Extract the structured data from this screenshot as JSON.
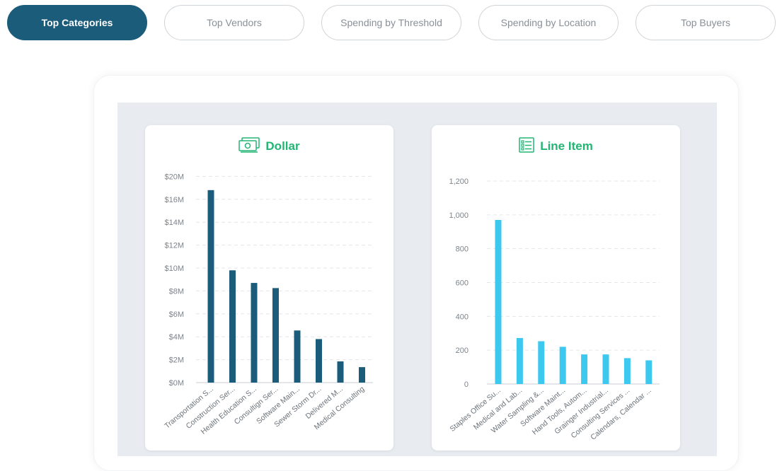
{
  "tabs": [
    {
      "label": "Top Categories",
      "active": true
    },
    {
      "label": "Top Vendors",
      "active": false
    },
    {
      "label": "Spending by Threshold",
      "active": false
    },
    {
      "label": "Spending by Location",
      "active": false
    },
    {
      "label": "Top Buyers",
      "active": false
    }
  ],
  "colors": {
    "accent": "#1b5c7a",
    "title_green": "#22b573",
    "dollar_bar": "#1b5c7a",
    "line_item_bar": "#3cc8ef",
    "panel_bg": "#e8ecf0"
  },
  "charts": {
    "dollar": {
      "title": "Dollar",
      "icon": "money-icon"
    },
    "line_item": {
      "title": "Line Item",
      "icon": "list-icon"
    }
  },
  "chart_data": [
    {
      "type": "bar",
      "title": "Dollar",
      "categories": [
        "Transportation S...",
        "Construction Ser...",
        "Health Education S...",
        "Consultign Ser...",
        "Software Main...",
        "Sewer Storm Dr...",
        "Delivered M...",
        "Medical Consulting"
      ],
      "values": [
        16800000,
        9800000,
        8700000,
        8250000,
        4550000,
        3800000,
        1850000,
        1350000
      ],
      "ylim": [
        0,
        20000000
      ],
      "yticks": [
        0,
        2000000,
        4000000,
        6000000,
        8000000,
        10000000,
        12000000,
        14000000,
        16000000,
        20000000
      ],
      "ytick_labels": [
        "$0M",
        "$2M",
        "$4M",
        "$6M",
        "$8M",
        "$10M",
        "$12M",
        "$14M",
        "$16M",
        "$20M"
      ],
      "color": "#1b5c7a",
      "grid": true
    },
    {
      "type": "bar",
      "title": "Line Item",
      "categories": [
        "Staples Office Su...",
        "Medical and Lab...",
        "Water Sampling &...",
        "Software Maint...",
        "Hand Tools, Autom...",
        "Grainger Industrial...",
        "Consulting Services ...",
        "Calendars, Calendar ..."
      ],
      "values": [
        970,
        272,
        253,
        220,
        175,
        175,
        153,
        140
      ],
      "ylim": [
        0,
        1200
      ],
      "yticks": [
        0,
        200,
        400,
        600,
        800,
        1000,
        1200
      ],
      "ytick_labels": [
        "0",
        "200",
        "400",
        "600",
        "800",
        "1,000",
        "1,200"
      ],
      "color": "#3cc8ef",
      "grid": true
    }
  ]
}
